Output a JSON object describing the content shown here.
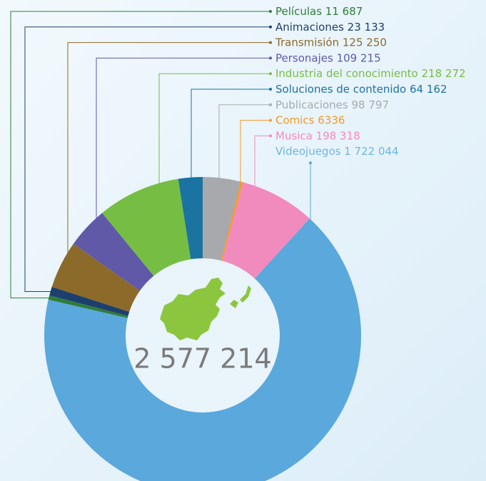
{
  "chart_data": {
    "type": "donut",
    "categories": [
      "Películas",
      "Animaciones",
      "Transmisión",
      "Personajes",
      "Industria del conocimiento",
      "Soluciones de contenido",
      "Publicaciones",
      "Comics",
      "Musica",
      "Videojuegos"
    ],
    "values": [
      11687,
      23133,
      125250,
      109215,
      218272,
      64162,
      98797,
      6336,
      198318,
      1722044
    ],
    "value_labels": [
      "11 687",
      "23 133",
      "125 250",
      "109 215",
      "218 272",
      "64 162",
      "98 797",
      "6336",
      "198 318",
      "1 722 044"
    ],
    "colors": [
      "#2e7d3a",
      "#1d3f6e",
      "#8c6a2a",
      "#6059a8",
      "#76be43",
      "#1a73a0",
      "#a7a9ac",
      "#f39a2a",
      "#f28bbd",
      "#5aa8dc"
    ],
    "total": 2577214,
    "total_label": "2 577 214"
  }
}
